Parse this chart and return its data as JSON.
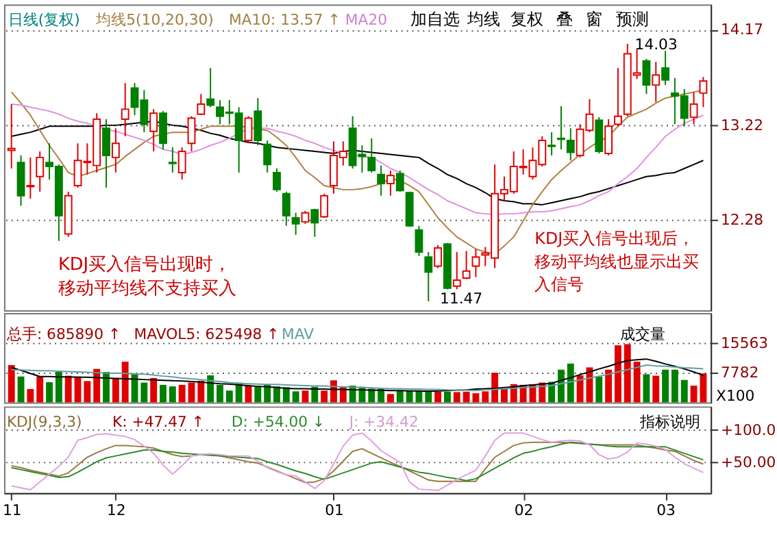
{
  "chart_data": [
    {
      "type": "candlestick",
      "categories": [
        "11",
        null,
        null,
        null,
        null,
        null,
        null,
        null,
        null,
        null,
        null,
        "12",
        null,
        null,
        null,
        null,
        null,
        null,
        null,
        null,
        null,
        null,
        null,
        null,
        null,
        null,
        null,
        null,
        null,
        null,
        null,
        null,
        null,
        null,
        "01",
        null,
        null,
        null,
        null,
        null,
        null,
        null,
        null,
        null,
        null,
        null,
        null,
        null,
        null,
        null,
        null,
        null,
        null,
        null,
        "02",
        null,
        null,
        null,
        null,
        null,
        null,
        null,
        null,
        null,
        null,
        null,
        null,
        null,
        null,
        "03",
        null,
        null,
        null,
        null
      ],
      "ohlc": [
        [
          12.97,
          13.43,
          12.79,
          12.99
        ],
        [
          12.85,
          12.92,
          12.42,
          12.52
        ],
        [
          12.61,
          12.9,
          12.49,
          12.62
        ],
        [
          12.71,
          12.96,
          12.56,
          12.9
        ],
        [
          12.85,
          13.04,
          12.68,
          12.81
        ],
        [
          12.81,
          12.83,
          12.07,
          12.32
        ],
        [
          12.14,
          12.56,
          12.11,
          12.52
        ],
        [
          12.62,
          13.04,
          12.6,
          12.87
        ],
        [
          12.85,
          13.04,
          12.73,
          12.86
        ],
        [
          12.82,
          13.34,
          12.75,
          13.28
        ],
        [
          13.19,
          13.28,
          12.6,
          12.92
        ],
        [
          12.9,
          13.19,
          12.75,
          13.04
        ],
        [
          13.28,
          13.64,
          13.11,
          13.38
        ],
        [
          13.59,
          13.64,
          13.32,
          13.4
        ],
        [
          13.47,
          13.57,
          13.15,
          13.23
        ],
        [
          13.16,
          13.38,
          12.96,
          13.34
        ],
        [
          13.34,
          13.36,
          12.98,
          13.04
        ],
        [
          12.85,
          13.0,
          12.75,
          12.84
        ],
        [
          12.75,
          13.0,
          12.68,
          12.96
        ],
        [
          13.04,
          13.31,
          12.96,
          13.29
        ],
        [
          13.33,
          13.53,
          13.32,
          13.43
        ],
        [
          13.48,
          13.79,
          13.4,
          13.42
        ],
        [
          13.4,
          13.47,
          13.23,
          13.31
        ],
        [
          13.35,
          13.47,
          13.23,
          13.34
        ],
        [
          13.34,
          13.4,
          12.75,
          13.07
        ],
        [
          13.07,
          13.31,
          13.04,
          13.29
        ],
        [
          13.36,
          13.49,
          13.02,
          13.07
        ],
        [
          13.03,
          13.07,
          12.75,
          12.83
        ],
        [
          12.75,
          12.79,
          12.56,
          12.58
        ],
        [
          12.54,
          12.56,
          12.22,
          12.32
        ],
        [
          12.3,
          12.35,
          12.13,
          12.24
        ],
        [
          12.26,
          12.37,
          12.24,
          12.35
        ],
        [
          12.38,
          12.39,
          12.11,
          12.25
        ],
        [
          12.31,
          12.54,
          12.3,
          12.52
        ],
        [
          12.62,
          13.06,
          12.54,
          12.92
        ],
        [
          12.9,
          13.06,
          12.82,
          12.96
        ],
        [
          13.19,
          13.31,
          12.79,
          12.82
        ],
        [
          12.93,
          13.02,
          12.75,
          12.91
        ],
        [
          12.9,
          13.09,
          12.75,
          12.77
        ],
        [
          12.73,
          12.82,
          12.52,
          12.64
        ],
        [
          12.64,
          12.77,
          12.52,
          12.72
        ],
        [
          12.74,
          12.77,
          12.56,
          12.57
        ],
        [
          12.55,
          12.56,
          12.21,
          12.22
        ],
        [
          12.18,
          12.22,
          11.92,
          11.96
        ],
        [
          11.91,
          11.96,
          11.47,
          11.76
        ],
        [
          11.82,
          12.03,
          11.8,
          12.0
        ],
        [
          12.04,
          12.05,
          11.59,
          11.6
        ],
        [
          11.62,
          11.96,
          11.59,
          11.68
        ],
        [
          11.7,
          11.97,
          11.69,
          11.77
        ],
        [
          11.82,
          11.99,
          11.71,
          11.91
        ],
        [
          11.93,
          12.01,
          11.82,
          11.95
        ],
        [
          11.9,
          12.83,
          11.8,
          12.54
        ],
        [
          12.54,
          12.71,
          12.47,
          12.58
        ],
        [
          12.56,
          12.96,
          12.54,
          12.81
        ],
        [
          12.8,
          12.98,
          12.73,
          12.81
        ],
        [
          12.71,
          13.0,
          12.68,
          12.87
        ],
        [
          12.83,
          13.11,
          12.81,
          13.07
        ],
        [
          13.02,
          13.15,
          12.92,
          13.01
        ],
        [
          13.09,
          13.41,
          12.98,
          13.08
        ],
        [
          13.07,
          13.19,
          12.87,
          12.95
        ],
        [
          12.92,
          13.23,
          12.9,
          13.18
        ],
        [
          13.17,
          13.48,
          13.15,
          13.33
        ],
        [
          13.27,
          13.3,
          12.94,
          12.96
        ],
        [
          12.94,
          13.28,
          12.92,
          13.21
        ],
        [
          13.23,
          13.79,
          13.21,
          13.31
        ],
        [
          13.33,
          14.03,
          13.31,
          13.93
        ],
        [
          13.72,
          13.98,
          13.68,
          13.74
        ],
        [
          13.86,
          13.88,
          13.53,
          13.62
        ],
        [
          13.62,
          13.85,
          13.45,
          13.72
        ],
        [
          13.79,
          13.96,
          13.62,
          13.67
        ],
        [
          13.54,
          13.69,
          13.23,
          13.51
        ],
        [
          13.51,
          13.58,
          13.21,
          13.29
        ],
        [
          13.3,
          13.55,
          13.23,
          13.43
        ],
        [
          13.54,
          13.7,
          13.4,
          13.66
        ]
      ],
      "colors": [
        "#e00000",
        "#008000",
        "#e00000",
        "#e00000",
        "#008000",
        "#008000",
        "#e00000",
        "#e00000",
        "#e00000",
        "#e00000",
        "#008000",
        "#e00000",
        "#e00000",
        "#008000",
        "#008000",
        "#e00000",
        "#008000",
        "#008000",
        "#e00000",
        "#e00000",
        "#e00000",
        "#008000",
        "#008000",
        "#008000",
        "#008000",
        "#e00000",
        "#008000",
        "#008000",
        "#008000",
        "#008000",
        "#008000",
        "#e00000",
        "#008000",
        "#e00000",
        "#e00000",
        "#e00000",
        "#008000",
        "#008000",
        "#008000",
        "#008000",
        "#e00000",
        "#008000",
        "#008000",
        "#008000",
        "#008000",
        "#e00000",
        "#008000",
        "#e00000",
        "#e00000",
        "#e00000",
        "#e00000",
        "#e00000",
        "#e00000",
        "#e00000",
        "#e00000",
        "#e00000",
        "#e00000",
        "#008000",
        "#008000",
        "#008000",
        "#e00000",
        "#e00000",
        "#008000",
        "#e00000",
        "#e00000",
        "#e00000",
        "#e00000",
        "#008000",
        "#e00000",
        "#008000",
        "#008000",
        "#008000",
        "#e00000",
        "#e00000"
      ],
      "series": [
        {
          "type": "line",
          "color": "#000000",
          "values": [
            13.11,
            13.13,
            13.15,
            13.18,
            13.21,
            13.21,
            13.21,
            13.21,
            13.21,
            13.21,
            13.22,
            13.22,
            13.23,
            13.24,
            13.25,
            13.26,
            13.24,
            13.22,
            13.21,
            13.19,
            13.17,
            13.14,
            13.12,
            13.09,
            13.07,
            13.05,
            13.04,
            13.02,
            13.0,
            12.99,
            12.98,
            12.97,
            12.96,
            12.95,
            12.94,
            12.96,
            12.97,
            12.96,
            12.95,
            12.94,
            12.93,
            12.92,
            12.91,
            12.9,
            12.84,
            12.79,
            12.73,
            12.69,
            12.64,
            12.6,
            12.55,
            12.49,
            12.47,
            12.46,
            12.44,
            12.44,
            12.43,
            12.45,
            12.47,
            12.49,
            12.51,
            12.54,
            12.56,
            12.59,
            12.62,
            12.65,
            12.68,
            12.71,
            12.72,
            12.74,
            12.75,
            12.79,
            12.83,
            12.87
          ]
        },
        {
          "type": "line",
          "color": "#b08040",
          "values": [
            13.55,
            13.44,
            13.32,
            13.17,
            13.02,
            12.89,
            12.75,
            12.71,
            12.74,
            12.77,
            12.8,
            12.83,
            12.91,
            12.98,
            13.05,
            13.11,
            13.13,
            13.15,
            13.15,
            13.15,
            13.18,
            13.21,
            13.21,
            13.21,
            13.21,
            13.2,
            13.18,
            13.17,
            13.1,
            13.02,
            12.9,
            12.77,
            12.7,
            12.62,
            12.6,
            12.58,
            12.58,
            12.59,
            12.61,
            12.64,
            12.69,
            12.67,
            12.62,
            12.56,
            12.43,
            12.3,
            12.2,
            12.11,
            12.05,
            11.99,
            11.96,
            11.94,
            12.02,
            12.11,
            12.27,
            12.43,
            12.56,
            12.68,
            12.77,
            12.85,
            12.93,
            13.0,
            13.06,
            13.11,
            13.21,
            13.3,
            13.34,
            13.38,
            13.44,
            13.49,
            13.51,
            13.53,
            13.55,
            13.57
          ]
        },
        {
          "type": "line",
          "color": "#e090e0",
          "values": [
            13.43,
            13.42,
            13.4,
            13.38,
            13.36,
            13.33,
            13.29,
            13.26,
            13.24,
            13.21,
            13.18,
            13.16,
            13.13,
            13.1,
            13.07,
            13.03,
            12.98,
            12.96,
            12.93,
            12.95,
            12.98,
            13.02,
            13.05,
            13.09,
            13.14,
            13.19,
            13.19,
            13.19,
            13.16,
            13.14,
            13.11,
            13.07,
            13.04,
            13.0,
            12.97,
            12.94,
            12.93,
            12.91,
            12.9,
            12.85,
            12.79,
            12.75,
            12.7,
            12.64,
            12.58,
            12.53,
            12.47,
            12.43,
            12.39,
            12.35,
            12.34,
            12.33,
            12.34,
            12.34,
            12.35,
            12.36,
            12.36,
            12.37,
            12.39,
            12.41,
            12.43,
            12.47,
            12.52,
            12.56,
            12.64,
            12.71,
            12.79,
            12.9,
            13.0,
            13.11,
            13.18,
            13.24,
            13.28,
            13.32
          ]
        }
      ],
      "ylim": [
        11.38,
        14.42
      ],
      "yticks": [
        14.17,
        13.22,
        12.28
      ],
      "grid": "y",
      "tick_labels": "y",
      "annotations": [
        "日线(复权)",
        "均线5(10,20,30)",
        "MA10: 13.57 ↑",
        "MA20",
        "加自选",
        "均线",
        "复权",
        "叠",
        "窗",
        "预测",
        "KDJ买入信号出现时，移动平均线不支持买入",
        "KDJ买入信号出现后，移动平均线也显示出买入信号",
        "14.03",
        "11.47"
      ]
    },
    {
      "type": "bar",
      "categories": [
        "11",
        null,
        null,
        null,
        null,
        null,
        null,
        null,
        null,
        null,
        null,
        "12",
        null,
        null,
        null,
        null,
        null,
        null,
        null,
        null,
        null,
        null,
        null,
        null,
        null,
        null,
        null,
        null,
        null,
        null,
        null,
        null,
        null,
        null,
        "01",
        null,
        null,
        null,
        null,
        null,
        null,
        null,
        null,
        null,
        null,
        null,
        null,
        null,
        null,
        null,
        null,
        null,
        null,
        null,
        "02",
        null,
        null,
        null,
        null,
        null,
        null,
        null,
        null,
        null,
        null,
        null,
        null,
        null,
        null,
        "03",
        null,
        null,
        null,
        null
      ],
      "series": [
        {
          "type": "bar",
          "values": [
            9800,
            6800,
            3500,
            6800,
            5300,
            8000,
            7000,
            6800,
            5600,
            8800,
            8000,
            6400,
            10700,
            7400,
            5200,
            6400,
            4600,
            4200,
            4600,
            5200,
            5700,
            7100,
            4600,
            3100,
            5200,
            4400,
            4400,
            4600,
            4200,
            4000,
            2900,
            3100,
            4100,
            3100,
            5800,
            4000,
            4400,
            4100,
            3600,
            3600,
            2200,
            3000,
            3100,
            3000,
            3100,
            2800,
            2800,
            2700,
            2800,
            2400,
            2900,
            7800,
            3700,
            4800,
            4600,
            4700,
            5200,
            5400,
            8600,
            10200,
            7100,
            9200,
            6800,
            8600,
            15000,
            15300,
            10700,
            7400,
            7000,
            8600,
            8600,
            5900,
            4400,
            7600
          ],
          "colors": [
            "#e00000",
            "#008000",
            "#e00000",
            "#e00000",
            "#008000",
            "#008000",
            "#e00000",
            "#e00000",
            "#e00000",
            "#e00000",
            "#008000",
            "#e00000",
            "#e00000",
            "#008000",
            "#008000",
            "#e00000",
            "#008000",
            "#008000",
            "#e00000",
            "#e00000",
            "#e00000",
            "#008000",
            "#008000",
            "#008000",
            "#008000",
            "#e00000",
            "#008000",
            "#008000",
            "#008000",
            "#008000",
            "#008000",
            "#e00000",
            "#008000",
            "#e00000",
            "#e00000",
            "#e00000",
            "#008000",
            "#008000",
            "#008000",
            "#008000",
            "#e00000",
            "#008000",
            "#008000",
            "#008000",
            "#008000",
            "#e00000",
            "#008000",
            "#e00000",
            "#e00000",
            "#e00000",
            "#e00000",
            "#e00000",
            "#e00000",
            "#e00000",
            "#e00000",
            "#e00000",
            "#e00000",
            "#008000",
            "#008000",
            "#008000",
            "#e00000",
            "#e00000",
            "#008000",
            "#e00000",
            "#e00000",
            "#e00000",
            "#e00000",
            "#008000",
            "#e00000",
            "#008000",
            "#008000",
            "#008000",
            "#e00000",
            "#e00000"
          ]
        },
        {
          "type": "line",
          "color": "#000000",
          "values": [
            9200,
            8400,
            7600,
            6800,
            6800,
            6700,
            6700,
            6600,
            6600,
            6500,
            6400,
            6300,
            6200,
            6100,
            6000,
            5900,
            5800,
            5700,
            5600,
            5500,
            5300,
            5100,
            4900,
            4800,
            4600,
            4400,
            4200,
            4100,
            3900,
            3700,
            3600,
            3600,
            3500,
            3500,
            3400,
            3400,
            3300,
            3300,
            3200,
            3200,
            3100,
            3100,
            3000,
            3000,
            2900,
            3000,
            3100,
            3200,
            3300,
            3500,
            3600,
            3700,
            3900,
            4100,
            4400,
            4600,
            4800,
            5000,
            5800,
            6500,
            7300,
            8000,
            8800,
            9500,
            10300,
            11000,
            11200,
            11400,
            10800,
            10100,
            9500,
            8800,
            8000,
            7100
          ]
        },
        {
          "type": "line",
          "color": "#5f9ea0",
          "values": [
            8600,
            8500,
            8400,
            8300,
            8300,
            8200,
            8100,
            8000,
            7900,
            7800,
            7700,
            7700,
            7600,
            7500,
            7400,
            7200,
            6900,
            6700,
            6400,
            6200,
            6000,
            5700,
            5500,
            5200,
            5000,
            4900,
            4800,
            4700,
            4700,
            4600,
            4500,
            4400,
            4300,
            4300,
            4200,
            4100,
            4000,
            3900,
            3800,
            3700,
            3600,
            3600,
            3500,
            3500,
            3400,
            3400,
            3300,
            3200,
            3200,
            3100,
            3300,
            3400,
            3600,
            3700,
            3900,
            4000,
            4200,
            4400,
            4900,
            5400,
            5900,
            6400,
            6900,
            7400,
            8000,
            8600,
            9200,
            9800,
            9600,
            9500,
            9300,
            9100,
            9000,
            8800
          ]
        }
      ],
      "ylim": [
        0,
        23480
      ],
      "yticks": [
        15563,
        7782
      ],
      "grid": "y",
      "tick_labels": "y",
      "annotations": [
        "总手: 685890 ↑",
        "MAVOL5: 625498 ↑",
        "MAV",
        "成交量",
        "X100"
      ]
    },
    {
      "type": "line",
      "categories": [
        "11",
        null,
        null,
        null,
        null,
        null,
        null,
        null,
        null,
        null,
        null,
        "12",
        null,
        null,
        null,
        null,
        null,
        null,
        null,
        null,
        null,
        null,
        null,
        null,
        null,
        null,
        null,
        null,
        null,
        null,
        null,
        null,
        null,
        null,
        "01",
        null,
        null,
        null,
        null,
        null,
        null,
        null,
        null,
        null,
        null,
        null,
        null,
        null,
        null,
        null,
        null,
        null,
        null,
        null,
        "02",
        null,
        null,
        null,
        null,
        null,
        null,
        null,
        null,
        null,
        null,
        null,
        null,
        null,
        null,
        "03",
        null,
        null,
        null,
        null
      ],
      "series": [
        {
          "color": "#9a7a40",
          "values": [
            45,
            42,
            38,
            35,
            32,
            29,
            34,
            46,
            58,
            65,
            71,
            76,
            76,
            75,
            74,
            72,
            67,
            62,
            59,
            60,
            62,
            63,
            60,
            57,
            54,
            51,
            49,
            43,
            37,
            31,
            25,
            19,
            20,
            25,
            37,
            52,
            67,
            71,
            64,
            57,
            50,
            44,
            37,
            30,
            23,
            21,
            21,
            21,
            21,
            21,
            40,
            58,
            67,
            76,
            80,
            81,
            81,
            81,
            81,
            80,
            79,
            78,
            77,
            77,
            77,
            77,
            77,
            74,
            72,
            69,
            67,
            60,
            53,
            47.47
          ]
        },
        {
          "color": "#2e8b2e",
          "values": [
            42,
            39,
            36,
            33,
            30,
            27,
            28,
            35,
            43,
            51,
            57,
            60,
            63,
            66,
            69,
            69,
            67,
            66,
            64,
            63,
            62,
            61,
            60,
            59,
            58,
            57,
            56,
            51,
            47,
            42,
            37,
            33,
            28,
            24,
            29,
            34,
            39,
            44,
            49,
            51,
            47,
            43,
            39,
            35,
            33,
            30,
            27,
            25,
            22,
            25,
            33,
            41,
            49,
            57,
            64,
            67,
            71,
            74,
            78,
            81,
            80,
            78,
            77,
            75,
            74,
            74,
            74,
            74,
            74,
            74,
            69,
            64,
            59,
            54
          ]
        },
        {
          "color": "#e0a0e0",
          "values": [
            14,
            11,
            8,
            20,
            32,
            44,
            58,
            84,
            88,
            93,
            94,
            92,
            90,
            85,
            75,
            64,
            46,
            32,
            45,
            60,
            62,
            63,
            62,
            60,
            60,
            60,
            52,
            42,
            36,
            31,
            29,
            20,
            10,
            22,
            48,
            75,
            92,
            95,
            83,
            68,
            59,
            50,
            20,
            9,
            8,
            7,
            15,
            24,
            31,
            38,
            60,
            84,
            95,
            95,
            95,
            90,
            85,
            81,
            83,
            84,
            83,
            77,
            62,
            55,
            58,
            66,
            80,
            78,
            75,
            70,
            58,
            48,
            41,
            34.42
          ]
        }
      ],
      "ylim": [
        3,
        136
      ],
      "yticks": [
        {
          "value": 100,
          "label": "+100.0"
        },
        {
          "value": 50,
          "label": "+50.00"
        }
      ],
      "grid": "y",
      "annotations": [
        "KDJ(9,3,3)",
        "K: +47.47 ↑",
        "D: +54.00 ↓",
        "J: +34.42",
        "指标说明"
      ]
    }
  ]
}
